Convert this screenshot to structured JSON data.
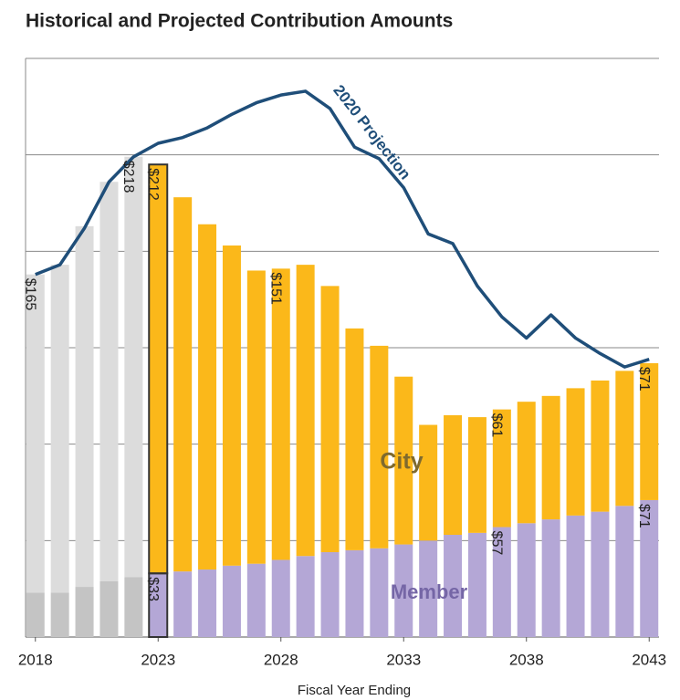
{
  "chart_data": {
    "type": "bar",
    "title": "Historical and Projected Contribution Amounts",
    "x_label": "Fiscal Year Ending",
    "x": [
      2018,
      2019,
      2020,
      2021,
      2022,
      2023,
      2024,
      2025,
      2026,
      2027,
      2028,
      2029,
      2030,
      2031,
      2032,
      2033,
      2034,
      2035,
      2036,
      2037,
      2038,
      2039,
      2040,
      2041,
      2042,
      2043
    ],
    "xlim": [
      2017.6,
      2043.4
    ],
    "xticks": [
      2018,
      2023,
      2028,
      2033,
      2038,
      2043
    ],
    "ylim": [
      0,
      300
    ],
    "yticks": [
      0,
      50,
      100,
      150,
      200,
      250,
      300
    ],
    "grid": true,
    "projection_start": 2023,
    "series": [
      {
        "name": "Member",
        "color": "#b4a7d6",
        "history_color": "#c4c4c4",
        "label_color": "#7566a6",
        "values": [
          23,
          23,
          26,
          29,
          31,
          33,
          34,
          35,
          37,
          38,
          40,
          42,
          44,
          45,
          46,
          48,
          50,
          53,
          54,
          57,
          59,
          61,
          63,
          65,
          68,
          71
        ],
        "value_labels": [
          null,
          null,
          null,
          null,
          null,
          "$33",
          null,
          null,
          null,
          null,
          null,
          null,
          null,
          null,
          null,
          null,
          null,
          null,
          null,
          "$57",
          null,
          null,
          null,
          null,
          null,
          "$71"
        ]
      },
      {
        "name": "City",
        "color": "#fbb81a",
        "history_color": "#dcdcdc",
        "label_color": "#7f6a2e",
        "values": [
          165,
          170,
          187,
          207,
          218,
          212,
          194,
          179,
          166,
          152,
          151,
          151,
          138,
          115,
          105,
          87,
          60,
          62,
          60,
          61,
          63,
          64,
          66,
          68,
          70,
          71
        ],
        "value_labels": [
          "$165",
          null,
          null,
          null,
          "$218",
          "$212",
          null,
          null,
          null,
          null,
          "$151",
          null,
          null,
          null,
          null,
          null,
          null,
          null,
          null,
          "$61",
          null,
          null,
          null,
          null,
          null,
          "$71"
        ]
      },
      {
        "name": "2020 Projection",
        "type": "line",
        "color": "#1f4e79",
        "values": [
          188,
          193,
          212,
          236,
          249,
          256,
          259,
          264,
          271,
          277,
          281,
          283,
          274,
          254,
          248,
          233,
          209,
          204,
          182,
          166,
          155,
          167,
          155,
          147,
          140,
          144
        ]
      }
    ]
  }
}
